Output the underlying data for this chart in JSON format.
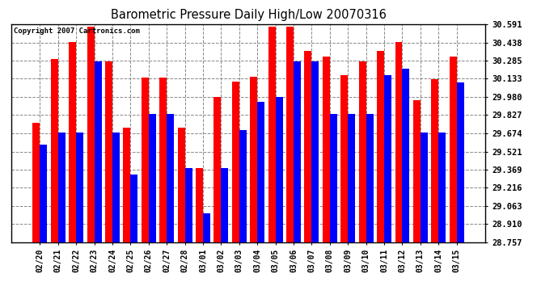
{
  "title": "Barometric Pressure Daily High/Low 20070316",
  "copyright": "Copyright 2007 Cartronics.com",
  "ylabel_right": [
    "30.591",
    "30.438",
    "30.285",
    "30.133",
    "29.980",
    "29.827",
    "29.674",
    "29.521",
    "29.369",
    "29.216",
    "29.063",
    "28.910",
    "28.757"
  ],
  "ylim": [
    28.757,
    30.591
  ],
  "dates": [
    "02/20",
    "02/21",
    "02/22",
    "02/23",
    "02/24",
    "02/25",
    "02/26",
    "02/27",
    "02/28",
    "03/01",
    "03/02",
    "03/03",
    "03/04",
    "03/05",
    "03/06",
    "03/07",
    "03/08",
    "03/09",
    "03/10",
    "03/11",
    "03/12",
    "03/13",
    "03/14",
    "03/15"
  ],
  "highs": [
    29.76,
    30.3,
    30.44,
    30.57,
    30.28,
    29.72,
    30.14,
    30.14,
    29.72,
    29.38,
    29.98,
    30.11,
    30.15,
    30.57,
    30.57,
    30.37,
    30.32,
    30.16,
    30.28,
    30.37,
    30.44,
    29.95,
    30.13,
    30.32
  ],
  "lows": [
    29.58,
    29.68,
    29.68,
    30.28,
    29.68,
    29.33,
    29.84,
    29.84,
    29.38,
    29.0,
    29.38,
    29.7,
    29.94,
    29.98,
    30.28,
    30.28,
    29.84,
    29.84,
    29.84,
    30.16,
    30.22,
    29.68,
    29.68,
    30.1
  ],
  "high_color": "#ff0000",
  "low_color": "#0000ff",
  "background_color": "#ffffff",
  "plot_bg_color": "#ffffff",
  "grid_color": "#888888",
  "bar_width": 0.4
}
